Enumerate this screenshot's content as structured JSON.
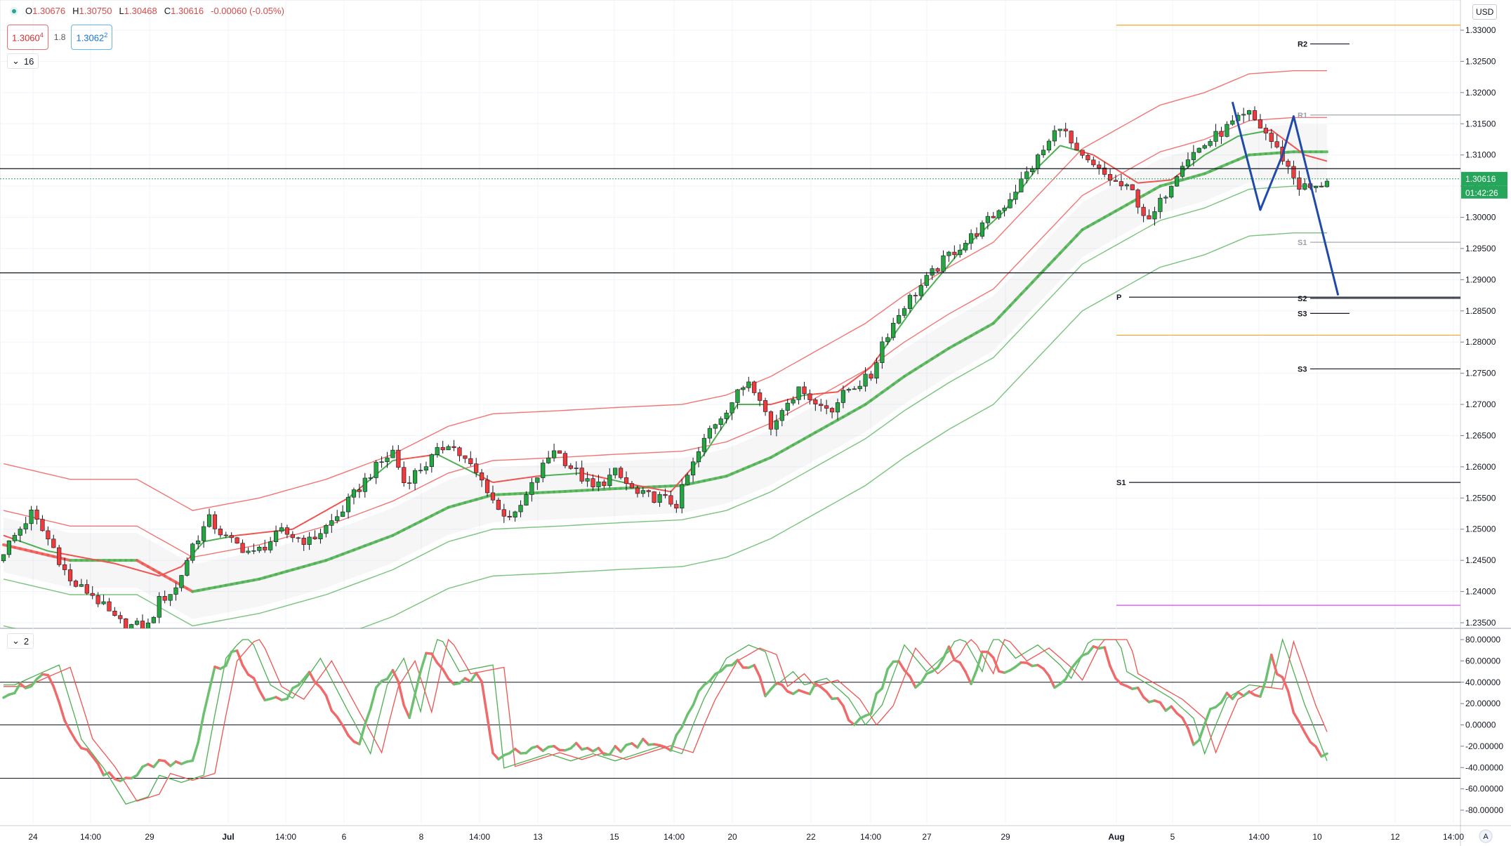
{
  "legend": {
    "open_label": "O",
    "open": "1.30676",
    "high_label": "H",
    "high": "1.30750",
    "low_label": "L",
    "low": "1.30468",
    "close_label": "C",
    "close": "1.30616",
    "change": "-0.00060 (-0.05%)"
  },
  "quote": {
    "sell": "1.3060",
    "sell_sup": "4",
    "spread": "1.8",
    "buy": "1.3062",
    "buy_sup": "2"
  },
  "pane1_collapse": "16",
  "pane2_collapse": "2",
  "currency": "USD",
  "price_axis": {
    "labels": [
      "1.33000",
      "1.32500",
      "1.32000",
      "1.31500",
      "1.31000",
      "1.30500",
      "1.30000",
      "1.29500",
      "1.29000",
      "1.28500",
      "1.28000",
      "1.27500",
      "1.27000",
      "1.26500",
      "1.26000",
      "1.25500",
      "1.25000",
      "1.24500",
      "1.24000",
      "1.23500"
    ],
    "current_price": "1.30616",
    "countdown": "01:42:26",
    "current_color": "#26a65b"
  },
  "osc_axis": {
    "labels": [
      "80.00000",
      "60.00000",
      "40.00000",
      "20.00000",
      "0.00000",
      "-20.00000",
      "-40.00000",
      "-60.00000",
      "-80.00000"
    ]
  },
  "time_axis": {
    "labels": [
      "24",
      "14:00",
      "29",
      "Jul",
      "14:00",
      "6",
      "8",
      "14:00",
      "13",
      "15",
      "14:00",
      "20",
      "22",
      "14:00",
      "27",
      "29",
      "Aug",
      "5",
      "14:00",
      "10",
      "12",
      "14:00"
    ],
    "bold": [
      false,
      false,
      false,
      true,
      false,
      false,
      false,
      false,
      false,
      false,
      false,
      false,
      false,
      false,
      false,
      false,
      true,
      false,
      false,
      false,
      false,
      false
    ]
  },
  "auto_label": "A",
  "chart_data": {
    "type": "candlestick",
    "series_name": "",
    "ylim": [
      1.233,
      1.333
    ],
    "close_path_keypoints": [
      [
        0,
        1.2465
      ],
      [
        5,
        1.2525
      ],
      [
        9,
        1.247
      ],
      [
        12,
        1.2415
      ],
      [
        16,
        1.2395
      ],
      [
        20,
        1.2355
      ],
      [
        22,
        1.2345
      ],
      [
        26,
        1.2345
      ],
      [
        28,
        1.2385
      ],
      [
        31,
        1.2405
      ],
      [
        34,
        1.2475
      ],
      [
        37,
        1.2515
      ],
      [
        40,
        1.2485
      ],
      [
        45,
        1.246
      ],
      [
        50,
        1.2495
      ],
      [
        55,
        1.248
      ],
      [
        60,
        1.252
      ],
      [
        66,
        1.259
      ],
      [
        70,
        1.2625
      ],
      [
        72,
        1.2575
      ],
      [
        76,
        1.2605
      ],
      [
        80,
        1.264
      ],
      [
        84,
        1.26
      ],
      [
        87,
        1.2565
      ],
      [
        89,
        1.253
      ],
      [
        92,
        1.252
      ],
      [
        96,
        1.2585
      ],
      [
        99,
        1.263
      ],
      [
        102,
        1.26
      ],
      [
        106,
        1.2565
      ],
      [
        110,
        1.259
      ],
      [
        114,
        1.2555
      ],
      [
        118,
        1.255
      ],
      [
        121,
        1.254
      ],
      [
        123,
        1.2585
      ],
      [
        127,
        1.266
      ],
      [
        131,
        1.2705
      ],
      [
        134,
        1.274
      ],
      [
        136,
        1.2715
      ],
      [
        138,
        1.266
      ],
      [
        141,
        1.271
      ],
      [
        144,
        1.2725
      ],
      [
        146,
        1.27
      ],
      [
        149,
        1.2695
      ],
      [
        152,
        1.2725
      ],
      [
        156,
        1.2745
      ],
      [
        158,
        1.28
      ],
      [
        162,
        1.286
      ],
      [
        166,
        1.29
      ],
      [
        170,
        1.294
      ],
      [
        173,
        1.296
      ],
      [
        176,
        1.2985
      ],
      [
        180,
        1.302
      ],
      [
        184,
        1.307
      ],
      [
        188,
        1.312
      ],
      [
        190,
        1.315
      ],
      [
        193,
        1.31
      ],
      [
        196,
        1.308
      ],
      [
        200,
        1.3055
      ],
      [
        203,
        1.304
      ],
      [
        206,
        1.299
      ],
      [
        209,
        1.304
      ],
      [
        212,
        1.309
      ],
      [
        215,
        1.311
      ],
      [
        218,
        1.313
      ],
      [
        221,
        1.315
      ],
      [
        224,
        1.3165
      ],
      [
        227,
        1.3135
      ],
      [
        230,
        1.3095
      ],
      [
        233,
        1.305
      ],
      [
        236,
        1.3045
      ],
      [
        238,
        1.3062
      ]
    ],
    "moving_average_slow": [
      [
        0,
        1.2475
      ],
      [
        12,
        1.245
      ],
      [
        24,
        1.245
      ],
      [
        30,
        1.242
      ],
      [
        34,
        1.24
      ],
      [
        46,
        1.242
      ],
      [
        58,
        1.245
      ],
      [
        70,
        1.249
      ],
      [
        80,
        1.2535
      ],
      [
        88,
        1.2555
      ],
      [
        100,
        1.256
      ],
      [
        110,
        1.2565
      ],
      [
        122,
        1.257
      ],
      [
        130,
        1.2585
      ],
      [
        138,
        1.2615
      ],
      [
        148,
        1.2665
      ],
      [
        155,
        1.27
      ],
      [
        162,
        1.2745
      ],
      [
        170,
        1.279
      ],
      [
        178,
        1.283
      ],
      [
        186,
        1.2905
      ],
      [
        194,
        1.298
      ],
      [
        200,
        1.301
      ],
      [
        208,
        1.305
      ],
      [
        216,
        1.307
      ],
      [
        224,
        1.31
      ],
      [
        232,
        1.3105
      ],
      [
        238,
        1.3105
      ]
    ],
    "moving_average_fast": [
      [
        0,
        1.249
      ],
      [
        8,
        1.2465
      ],
      [
        20,
        1.2445
      ],
      [
        28,
        1.2425
      ],
      [
        32,
        1.244
      ],
      [
        36,
        1.248
      ],
      [
        42,
        1.249
      ],
      [
        52,
        1.25
      ],
      [
        62,
        1.255
      ],
      [
        70,
        1.261
      ],
      [
        78,
        1.262
      ],
      [
        88,
        1.2575
      ],
      [
        96,
        1.2585
      ],
      [
        104,
        1.259
      ],
      [
        114,
        1.257
      ],
      [
        120,
        1.256
      ],
      [
        126,
        1.262
      ],
      [
        132,
        1.27
      ],
      [
        138,
        1.27
      ],
      [
        144,
        1.2715
      ],
      [
        150,
        1.272
      ],
      [
        156,
        1.276
      ],
      [
        164,
        1.286
      ],
      [
        172,
        1.2945
      ],
      [
        180,
        1.301
      ],
      [
        186,
        1.308
      ],
      [
        190,
        1.3115
      ],
      [
        196,
        1.31
      ],
      [
        204,
        1.3055
      ],
      [
        210,
        1.306
      ],
      [
        216,
        1.31
      ],
      [
        222,
        1.313
      ],
      [
        228,
        1.314
      ],
      [
        234,
        1.31
      ],
      [
        238,
        1.309
      ]
    ],
    "envelope_offsets": {
      "inner": 0.0055,
      "outer": 0.011
    },
    "pivot_levels": [
      {
        "label": "R2",
        "value": 1.3278
      },
      {
        "label": "R1",
        "value": 1.3164
      },
      {
        "label": "S1",
        "value": 1.296
      },
      {
        "label": "P",
        "value": 1.2872
      },
      {
        "label": "S2",
        "value": 1.287
      },
      {
        "label": "S3",
        "value": 1.2846
      },
      {
        "label": "S3",
        "value": 1.2757
      },
      {
        "label": "S1",
        "value": 1.2575
      }
    ],
    "horizontal_lines": [
      {
        "value": 1.3308,
        "color": "#f5a623"
      },
      {
        "value": 1.3078,
        "color": "#131722"
      },
      {
        "value": 1.2911,
        "color": "#131722"
      },
      {
        "value": 1.2811,
        "color": "#f5a623"
      },
      {
        "value": 1.2378,
        "color": "#e040fb"
      }
    ],
    "projection_path": [
      [
        221,
        1.3185
      ],
      [
        226,
        1.3012
      ],
      [
        230,
        1.31
      ],
      [
        232,
        1.3162
      ],
      [
        240,
        1.2875
      ]
    ],
    "oscillator": {
      "ylim": [
        -90,
        90
      ],
      "levels": [
        40,
        0,
        -50
      ],
      "main_keypoints": [
        [
          0,
          30
        ],
        [
          8,
          45
        ],
        [
          12,
          -10
        ],
        [
          16,
          -30
        ],
        [
          20,
          -55
        ],
        [
          24,
          -50
        ],
        [
          26,
          -35
        ],
        [
          30,
          -40
        ],
        [
          34,
          -35
        ],
        [
          38,
          50
        ],
        [
          42,
          70
        ],
        [
          46,
          30
        ],
        [
          50,
          20
        ],
        [
          55,
          50
        ],
        [
          60,
          10
        ],
        [
          64,
          -20
        ],
        [
          67,
          30
        ],
        [
          70,
          50
        ],
        [
          73,
          10
        ],
        [
          76,
          70
        ],
        [
          80,
          40
        ],
        [
          86,
          45
        ],
        [
          88,
          -30
        ],
        [
          92,
          -25
        ],
        [
          96,
          -20
        ],
        [
          100,
          -25
        ],
        [
          104,
          -20
        ],
        [
          108,
          -25
        ],
        [
          112,
          -20
        ],
        [
          116,
          -15
        ],
        [
          120,
          -20
        ],
        [
          124,
          20
        ],
        [
          128,
          50
        ],
        [
          132,
          60
        ],
        [
          135,
          55
        ],
        [
          137,
          30
        ],
        [
          140,
          40
        ],
        [
          142,
          30
        ],
        [
          146,
          35
        ],
        [
          150,
          20
        ],
        [
          153,
          0
        ],
        [
          156,
          15
        ],
        [
          160,
          60
        ],
        [
          164,
          40
        ],
        [
          168,
          55
        ],
        [
          170,
          70
        ],
        [
          174,
          40
        ],
        [
          176,
          70
        ],
        [
          180,
          50
        ],
        [
          184,
          60
        ],
        [
          188,
          45
        ],
        [
          190,
          35
        ],
        [
          194,
          70
        ],
        [
          198,
          75
        ],
        [
          200,
          40
        ],
        [
          204,
          30
        ],
        [
          208,
          20
        ],
        [
          212,
          5
        ],
        [
          214,
          -20
        ],
        [
          218,
          20
        ],
        [
          222,
          30
        ],
        [
          226,
          28
        ],
        [
          228,
          65
        ],
        [
          232,
          15
        ],
        [
          236,
          -25
        ],
        [
          238,
          -30
        ]
      ]
    }
  }
}
